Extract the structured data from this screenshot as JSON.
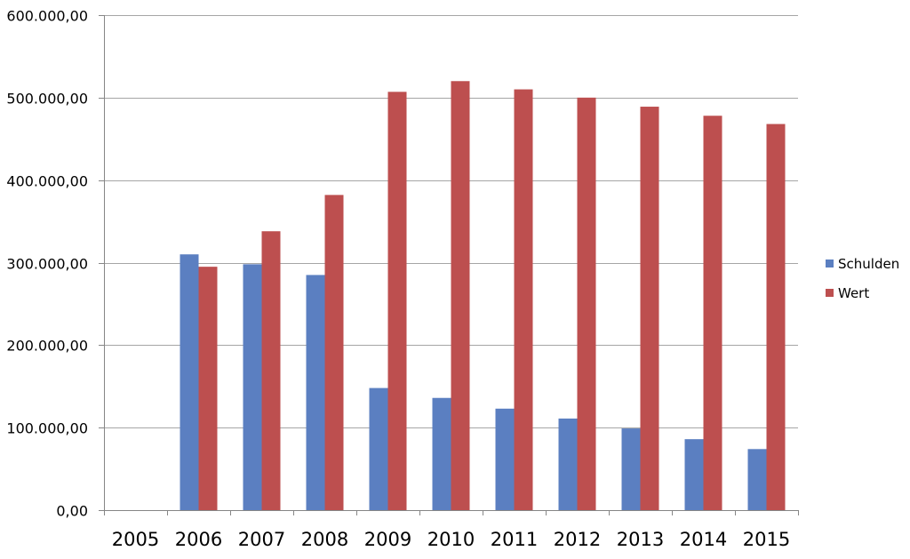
{
  "colors": {
    "background": "#ffffff",
    "grid": "#a6a6a6",
    "axis": "#868686",
    "series": [
      "#5b7fc1",
      "#bd4f4f"
    ]
  },
  "chart_data": {
    "type": "bar",
    "title": "",
    "xlabel": "",
    "ylabel": "",
    "categories": [
      "2005",
      "2006",
      "2007",
      "2008",
      "2009",
      "2010",
      "2011",
      "2012",
      "2013",
      "2014",
      "2015"
    ],
    "series": [
      {
        "name": "Schulden",
        "color": "#5b7fc1",
        "values": [
          0,
          310000,
          298000,
          285000,
          148000,
          136000,
          123000,
          111000,
          99000,
          86000,
          74000
        ]
      },
      {
        "name": "Wert",
        "color": "#bd4f4f",
        "values": [
          0,
          295000,
          338000,
          382000,
          507000,
          520000,
          510000,
          500000,
          489000,
          478000,
          468000
        ]
      }
    ],
    "ylim": [
      0,
      600000
    ],
    "yticks": [
      0,
      100000,
      200000,
      300000,
      400000,
      500000,
      600000
    ],
    "ytick_labels": [
      "0,00",
      "100.000,00",
      "200.000,00",
      "300.000,00",
      "400.000,00",
      "500.000,00",
      "600.000,00"
    ],
    "grid": true,
    "legend_position": "right"
  }
}
